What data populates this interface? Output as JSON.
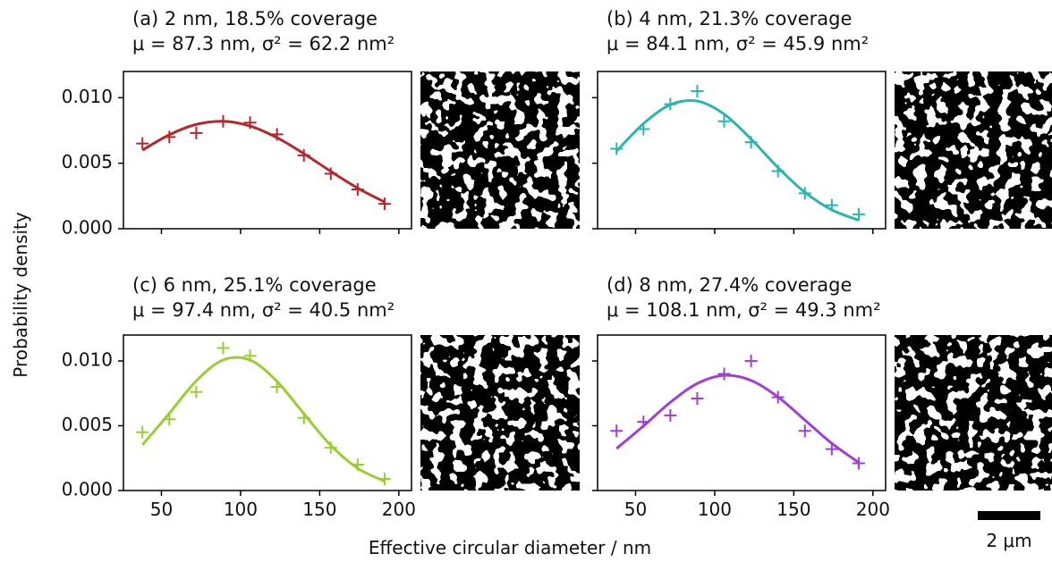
{
  "y_label": "Probability density",
  "x_label": "Effective circular diameter / nm",
  "scale_bar_label": "2 μm",
  "chart_data": [
    {
      "type": "scatter",
      "title": "(a) 2 nm, 18.5% coverage",
      "subtitle": "μ = 87.3 nm, σ² = 62.2 nm²",
      "color": "#b3282b",
      "x": [
        38,
        55,
        72,
        89,
        106,
        123,
        140,
        157,
        174,
        191
      ],
      "values": [
        0.0065,
        0.007,
        0.0073,
        0.0082,
        0.0081,
        0.0072,
        0.0056,
        0.0042,
        0.003,
        0.0019
      ],
      "fit": {
        "x": [
          38,
          55,
          72,
          89,
          106,
          123,
          140,
          157,
          174,
          191
        ],
        "values": [
          0.006,
          0.00717,
          0.00796,
          0.0082,
          0.00784,
          0.00695,
          0.00573,
          0.00438,
          0.0031,
          0.00204
        ]
      },
      "xlim": [
        26,
        208
      ],
      "ylim": [
        0,
        0.012
      ],
      "xticks": [
        50,
        100,
        150,
        200
      ],
      "yticks": [
        {
          "value": 0,
          "label": "0.000"
        },
        {
          "value": 0.005,
          "label": "0.005"
        },
        {
          "value": 0.01,
          "label": "0.010"
        }
      ],
      "show_xticklabels": false,
      "show_yticklabels": true
    },
    {
      "type": "scatter",
      "title": "(b) 4 nm, 21.3% coverage",
      "subtitle": "μ = 84.1 nm, σ² = 45.9 nm²",
      "color": "#2bb5b0",
      "x": [
        38,
        55,
        72,
        89,
        106,
        123,
        140,
        157,
        174,
        191
      ],
      "values": [
        0.0061,
        0.0076,
        0.0095,
        0.0105,
        0.0082,
        0.0066,
        0.0044,
        0.0027,
        0.0018,
        0.0011
      ],
      "fit": {
        "x": [
          38,
          55,
          72,
          89,
          106,
          123,
          140,
          157,
          174,
          191
        ],
        "values": [
          0.00592,
          0.00802,
          0.00946,
          0.00974,
          0.00874,
          0.00684,
          0.00467,
          0.00278,
          0.00144,
          0.00065
        ]
      },
      "xlim": [
        26,
        208
      ],
      "ylim": [
        0,
        0.012
      ],
      "xticks": [
        50,
        100,
        150,
        200
      ],
      "yticks": [
        0,
        0.005,
        0.01
      ],
      "show_xticklabels": false,
      "show_yticklabels": false
    },
    {
      "type": "scatter",
      "title": "(c) 6 nm, 25.1% coverage",
      "subtitle": "μ = 97.4 nm, σ² = 40.5 nm²",
      "color": "#9acd32",
      "x": [
        38,
        55,
        72,
        89,
        106,
        123,
        140,
        157,
        174,
        191
      ],
      "values": [
        0.0045,
        0.0055,
        0.0076,
        0.011,
        0.0104,
        0.008,
        0.0056,
        0.0033,
        0.002,
        0.0009
      ],
      "fit": {
        "x": [
          38,
          55,
          72,
          89,
          106,
          123,
          140,
          157,
          174,
          191
        ],
        "values": [
          0.00352,
          0.00596,
          0.00846,
          0.01008,
          0.01007,
          0.00843,
          0.00593,
          0.00349,
          0.00172,
          0.00071
        ]
      },
      "xlim": [
        26,
        208
      ],
      "ylim": [
        0,
        0.012
      ],
      "xticks": [
        50,
        100,
        150,
        200
      ],
      "yticks": [
        {
          "value": 0,
          "label": "0.000"
        },
        {
          "value": 0.005,
          "label": "0.005"
        },
        {
          "value": 0.01,
          "label": "0.010"
        }
      ],
      "show_xticklabels": true,
      "show_yticklabels": true
    },
    {
      "type": "scatter",
      "title": "(d) 8 nm, 27.4% coverage",
      "subtitle": "μ = 108.1 nm, σ² = 49.3 nm²",
      "color": "#a23fd1",
      "x": [
        38,
        55,
        72,
        89,
        106,
        123,
        140,
        157,
        174,
        191
      ],
      "values": [
        0.0046,
        0.0053,
        0.0058,
        0.0071,
        0.009,
        0.01,
        0.0072,
        0.0046,
        0.0032,
        0.0021
      ],
      "fit": {
        "x": [
          38,
          55,
          72,
          89,
          106,
          123,
          140,
          157,
          174,
          191
        ],
        "values": [
          0.00324,
          0.00498,
          0.00681,
          0.00826,
          0.00889,
          0.0085,
          0.00722,
          0.00544,
          0.00364,
          0.00216
        ]
      },
      "xlim": [
        26,
        208
      ],
      "ylim": [
        0,
        0.012
      ],
      "xticks": [
        50,
        100,
        150,
        200
      ],
      "yticks": [
        0,
        0.005,
        0.01
      ],
      "show_xticklabels": true,
      "show_yticklabels": false
    }
  ]
}
